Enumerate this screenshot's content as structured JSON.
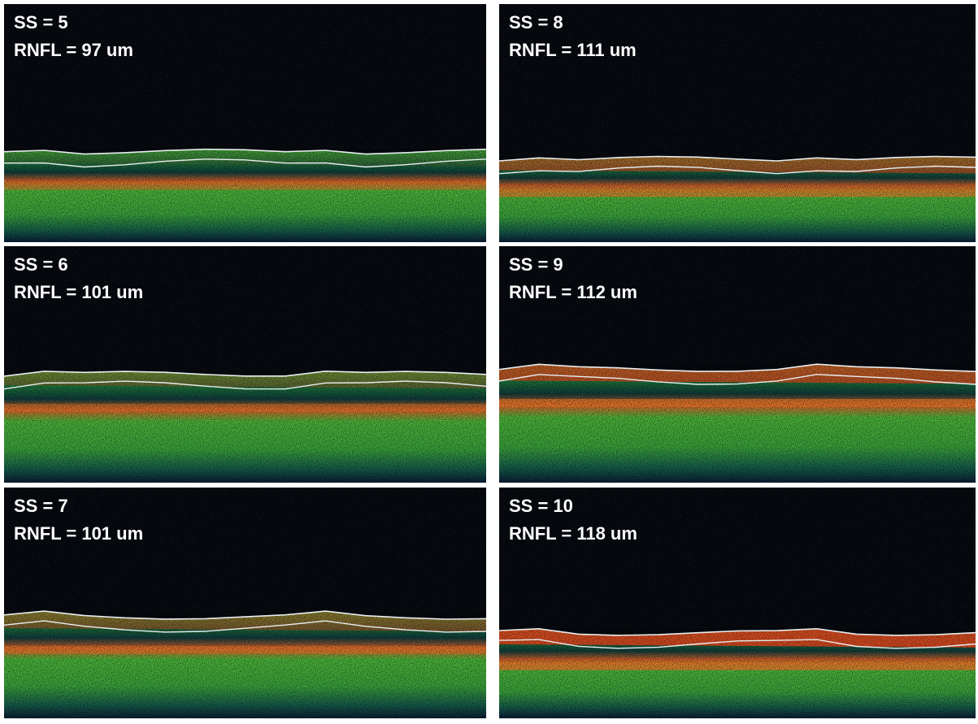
{
  "panels": [
    {
      "ss": "SS = 5",
      "rnfl": "RNFL = 97 um"
    },
    {
      "ss": "SS = 8",
      "rnfl": "RNFL = 111 um"
    },
    {
      "ss": "SS = 6",
      "rnfl": "RNFL = 101 um"
    },
    {
      "ss": "SS = 9",
      "rnfl": "RNFL = 112 um"
    },
    {
      "ss": "SS = 7",
      "rnfl": "RNFL = 101 um"
    },
    {
      "ss": "SS = 10",
      "rnfl": "RNFL = 118 um"
    }
  ]
}
